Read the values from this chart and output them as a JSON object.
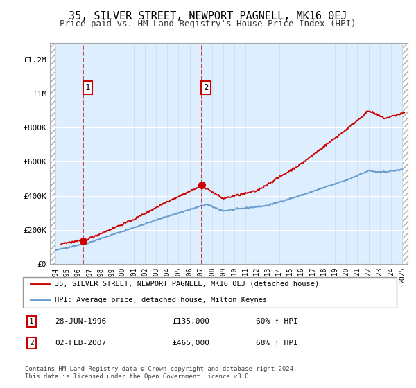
{
  "title": "35, SILVER STREET, NEWPORT PAGNELL, MK16 0EJ",
  "subtitle": "Price paid vs. HM Land Registry's House Price Index (HPI)",
  "legend_line1": "35, SILVER STREET, NEWPORT PAGNELL, MK16 0EJ (detached house)",
  "legend_line2": "HPI: Average price, detached house, Milton Keynes",
  "footnote": "Contains HM Land Registry data © Crown copyright and database right 2024.\nThis data is licensed under the Open Government Licence v3.0.",
  "sale1_label": "1",
  "sale1_date": "28-JUN-1996",
  "sale1_price": "£135,000",
  "sale1_hpi": "60% ↑ HPI",
  "sale2_label": "2",
  "sale2_date": "02-FEB-2007",
  "sale2_price": "£465,000",
  "sale2_hpi": "68% ↑ HPI",
  "sale1_x": 1996.49,
  "sale1_y": 135000,
  "sale2_x": 2007.09,
  "sale2_y": 465000,
  "red_line_color": "#cc0000",
  "blue_line_color": "#6699cc",
  "bg_plot_color": "#ddeeff",
  "ylim_max": 1300000,
  "xlim_min": 1993.5,
  "xlim_max": 2025.5,
  "yticks": [
    0,
    200000,
    400000,
    600000,
    800000,
    1000000,
    1200000
  ],
  "ytick_labels": [
    "£0",
    "£200K",
    "£400K",
    "£600K",
    "£800K",
    "£1M",
    "£1.2M"
  ],
  "xticks": [
    1994,
    1995,
    1996,
    1997,
    1998,
    1999,
    2000,
    2001,
    2002,
    2003,
    2004,
    2005,
    2006,
    2007,
    2008,
    2009,
    2010,
    2011,
    2012,
    2013,
    2014,
    2015,
    2016,
    2017,
    2018,
    2019,
    2020,
    2021,
    2022,
    2023,
    2024,
    2025
  ]
}
